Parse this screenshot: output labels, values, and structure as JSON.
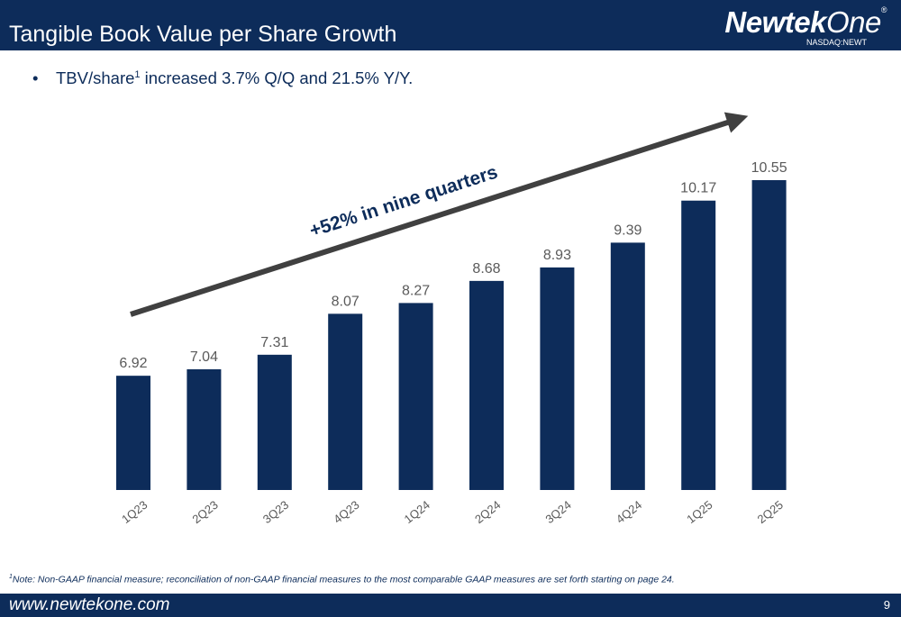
{
  "header": {
    "title": "Tangible Book Value per Share Growth"
  },
  "logo": {
    "word_bold": "Newtek",
    "word_light": "One",
    "registered": "®",
    "ticker": "NASDAQ:NEWT"
  },
  "bullet": {
    "marker": "•",
    "text_before": "TBV/share",
    "superscript": "1",
    "text_after": " increased 3.7% Q/Q and 21.5% Y/Y."
  },
  "chart_data": {
    "type": "bar",
    "categories": [
      "1Q23",
      "2Q23",
      "3Q23",
      "4Q23",
      "1Q24",
      "2Q24",
      "3Q24",
      "4Q24",
      "1Q25",
      "2Q25"
    ],
    "values": [
      6.92,
      7.04,
      7.31,
      8.07,
      8.27,
      8.68,
      8.93,
      9.39,
      10.17,
      10.55
    ],
    "value_labels": [
      "6.92",
      "7.04",
      "7.31",
      "8.07",
      "8.27",
      "8.68",
      "8.93",
      "9.39",
      "10.17",
      "10.55"
    ],
    "ylim": [
      4.8,
      11
    ],
    "grid": false,
    "legend": "none",
    "bar_color": "#0d2c5a",
    "label_color": "#5a5a5a",
    "annotation": {
      "text": "+52% in nine quarters",
      "arrow_color": "#404040"
    }
  },
  "footnote": {
    "superscript": "1",
    "text": "Note: Non-GAAP financial measure; reconciliation of non-GAAP financial measures to the most comparable GAAP measures are set forth starting on page 24."
  },
  "footer": {
    "url": "www.newtekone.com",
    "page": "9"
  }
}
